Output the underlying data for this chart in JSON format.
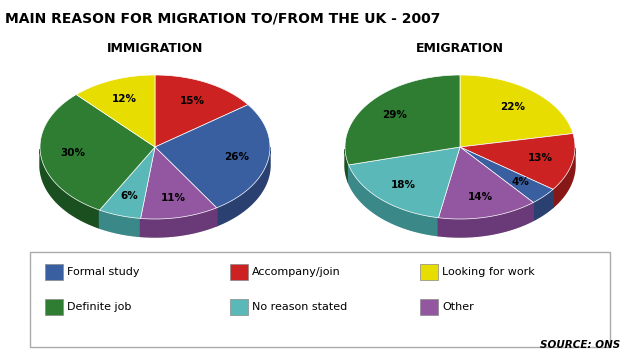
{
  "title": "MAIN REASON FOR MIGRATION TO/FROM THE UK - 2007",
  "immigration_label": "IMMIGRATION",
  "emigration_label": "EMIGRATION",
  "source": "SOURCE: ONS",
  "categories": [
    "Formal study",
    "Accompany/join",
    "Looking for work",
    "Definite job",
    "No reason stated",
    "Other"
  ],
  "colors": [
    "#3a5fa0",
    "#cc2222",
    "#e8dd00",
    "#2e7d32",
    "#5bb8b8",
    "#9356a0"
  ],
  "dark_colors": [
    "#2a4070",
    "#881818",
    "#a89c00",
    "#1a5020",
    "#3a8888",
    "#6a3a78"
  ],
  "immigration_sizes": [
    26,
    15,
    12,
    30,
    6,
    11
  ],
  "immigration_order": [
    1,
    0,
    5,
    4,
    3,
    2
  ],
  "emigration_sizes": [
    4,
    13,
    22,
    29,
    18,
    14
  ],
  "emigration_order": [
    2,
    1,
    0,
    5,
    4,
    3
  ],
  "background_color": "#ffffff",
  "legend_items": [
    [
      "#3a5fa0",
      "Formal study"
    ],
    [
      "#cc2222",
      "Accompany/join"
    ],
    [
      "#e8dd00",
      "Looking for work"
    ],
    [
      "#2e7d32",
      "Definite job"
    ],
    [
      "#5bb8b8",
      "No reason stated"
    ],
    [
      "#9356a0",
      "Other"
    ]
  ]
}
